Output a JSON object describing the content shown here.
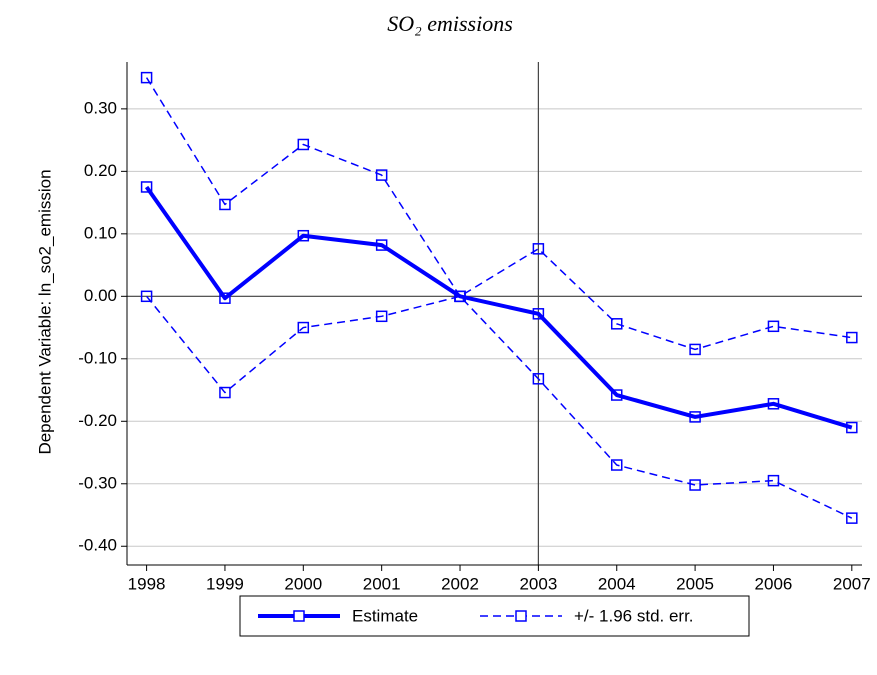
{
  "chart_data": {
    "type": "line",
    "title": "SO₂ emissions",
    "ylabel": "Dependent Variable: ln_so2_emission",
    "x": [
      1998,
      1999,
      2000,
      2001,
      2002,
      2003,
      2004,
      2005,
      2006,
      2007
    ],
    "xlim": [
      1997.75,
      2007.13
    ],
    "xticks": [
      1998,
      1999,
      2000,
      2001,
      2002,
      2003,
      2004,
      2005,
      2006,
      2007
    ],
    "ylim": [
      -0.43,
      0.375
    ],
    "yticks": [
      {
        "value": 0.3,
        "label": "0.30"
      },
      {
        "value": 0.2,
        "label": "0.20"
      },
      {
        "value": 0.1,
        "label": "0.10"
      },
      {
        "value": 0,
        "label": "0.00"
      },
      {
        "value": -0.1,
        "label": "-0.10"
      },
      {
        "value": -0.2,
        "label": "-0.20"
      },
      {
        "value": -0.3,
        "label": "-0.30"
      },
      {
        "value": -0.4,
        "label": "-0.40"
      }
    ],
    "grid": true,
    "vline": 2003,
    "hline": 0,
    "legend": "bottom",
    "series": [
      {
        "name": "Estimate",
        "color": "#0000ff",
        "dash": "solid",
        "values": [
          0.175,
          -0.003,
          0.097,
          0.082,
          0,
          -0.028,
          -0.158,
          -0.193,
          -0.172,
          -0.21
        ]
      },
      {
        "name": "+/- 1.96 std. err.",
        "color": "#0000ff",
        "dash": "dashed",
        "upper": [
          0.35,
          0.147,
          0.243,
          0.194,
          0,
          0.076,
          -0.044,
          -0.085,
          -0.048,
          -0.066
        ],
        "lower": [
          0,
          -0.154,
          -0.05,
          -0.032,
          0,
          -0.132,
          -0.27,
          -0.302,
          -0.295,
          -0.355
        ]
      }
    ]
  }
}
